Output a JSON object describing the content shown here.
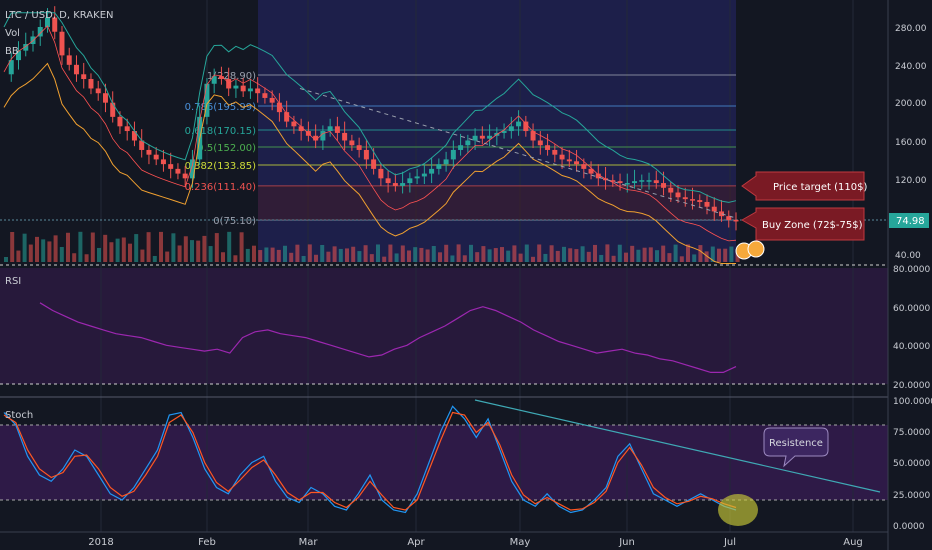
{
  "header": {
    "symbol": "LTC / USD, D, KRAKEN",
    "vol_label": "Vol",
    "bb_label": "BB",
    "rsi_label": "RSI",
    "stoch_label": "Stoch"
  },
  "colors": {
    "background": "#131722",
    "fib_zone": "#1d1f4a",
    "rsi_band": "#2a1a3e",
    "stoch_band": "#2f1a4a",
    "candle_up": "#26a69a",
    "candle_down": "#ef5350",
    "bb_band": "#26a69a",
    "bb_basis": "#f0a030",
    "rsi_line": "#9c27b0",
    "stoch_k": "#2196f3",
    "stoch_d": "#ff5722",
    "callout": "#7a1a24",
    "trendline": "#3fa9b5"
  },
  "chart_data": [
    {
      "type": "candlestick",
      "panel": "price",
      "ylim": [
        30,
        300
      ],
      "y_ticks": [
        "280.00",
        "240.00",
        "200.00",
        "160.00",
        "120.00",
        "40.00"
      ],
      "x_ticks": [
        "2018",
        "Feb",
        "Mar",
        "Apr",
        "May",
        "Jun",
        "Jul",
        "Aug"
      ],
      "last_price": "74.98",
      "close_series": [
        230,
        245,
        255,
        262,
        270,
        280,
        290,
        275,
        250,
        240,
        230,
        225,
        215,
        210,
        200,
        185,
        175,
        170,
        160,
        150,
        145,
        140,
        135,
        130,
        125,
        120,
        140,
        185,
        220,
        228,
        225,
        215,
        218,
        212,
        215,
        210,
        205,
        200,
        190,
        180,
        175,
        170,
        165,
        160,
        170,
        175,
        168,
        160,
        155,
        150,
        140,
        130,
        120,
        115,
        112,
        115,
        120,
        122,
        125,
        130,
        135,
        140,
        150,
        155,
        160,
        165,
        162,
        165,
        168,
        170,
        175,
        180,
        170,
        160,
        155,
        150,
        145,
        140,
        138,
        135,
        130,
        125,
        120,
        118,
        117,
        115,
        115,
        117,
        118,
        118,
        115,
        110,
        105,
        100,
        98,
        97,
        95,
        90,
        85,
        80,
        76,
        75
      ],
      "fibonacci": [
        {
          "level": "1(228.90)"
        },
        {
          "level": "0.786(195.99)"
        },
        {
          "level": "0.618(170.15)"
        },
        {
          "level": "0.5(152.00)"
        },
        {
          "level": "0.382(133.85)"
        },
        {
          "level": "0.236(111.40)"
        },
        {
          "level": "0(75.10)"
        }
      ],
      "annotations": [
        "Price target (110$)",
        "Buy Zone (72$-75$)"
      ]
    },
    {
      "type": "line",
      "panel": "rsi",
      "ylim": [
        15,
        85
      ],
      "y_ticks": [
        "80.0000",
        "60.0000",
        "40.0000",
        "20.0000"
      ],
      "series": [
        {
          "values": [
            62,
            58,
            55,
            52,
            50,
            48,
            46,
            45,
            44,
            42,
            40,
            39,
            38,
            37,
            38,
            36,
            44,
            47,
            48,
            46,
            45,
            44,
            42,
            40,
            38,
            36,
            34,
            35,
            38,
            40,
            44,
            47,
            50,
            54,
            58,
            60,
            58,
            55,
            52,
            48,
            45,
            42,
            40,
            38,
            36,
            37,
            38,
            36,
            35,
            33,
            32,
            30,
            28,
            26,
            26,
            29
          ]
        }
      ]
    },
    {
      "type": "line",
      "panel": "stoch",
      "ylim": [
        0,
        100
      ],
      "y_ticks": [
        "100.0000",
        "75.0000",
        "50.0000",
        "25.0000",
        "0.0000"
      ],
      "series": [
        {
          "values": [
            90,
            80,
            55,
            40,
            35,
            45,
            60,
            55,
            40,
            25,
            20,
            30,
            45,
            60,
            88,
            90,
            70,
            45,
            30,
            25,
            40,
            50,
            55,
            35,
            22,
            18,
            30,
            25,
            15,
            12,
            25,
            40,
            20,
            12,
            10,
            25,
            50,
            75,
            95,
            85,
            70,
            85,
            60,
            35,
            20,
            15,
            25,
            15,
            10,
            12,
            20,
            30,
            55,
            65,
            45,
            25,
            20,
            15,
            20,
            25,
            20,
            15,
            12
          ]
        },
        {
          "values": [
            88,
            82,
            60,
            45,
            38,
            42,
            55,
            56,
            45,
            30,
            23,
            27,
            40,
            55,
            82,
            88,
            74,
            50,
            34,
            27,
            36,
            46,
            52,
            40,
            26,
            20,
            26,
            26,
            18,
            14,
            22,
            35,
            24,
            14,
            12,
            20,
            44,
            68,
            90,
            88,
            74,
            82,
            64,
            40,
            24,
            17,
            22,
            17,
            12,
            13,
            18,
            27,
            50,
            62,
            48,
            30,
            22,
            17,
            19,
            23,
            21,
            17,
            14
          ]
        }
      ],
      "annotations": [
        "Resistence"
      ]
    }
  ]
}
